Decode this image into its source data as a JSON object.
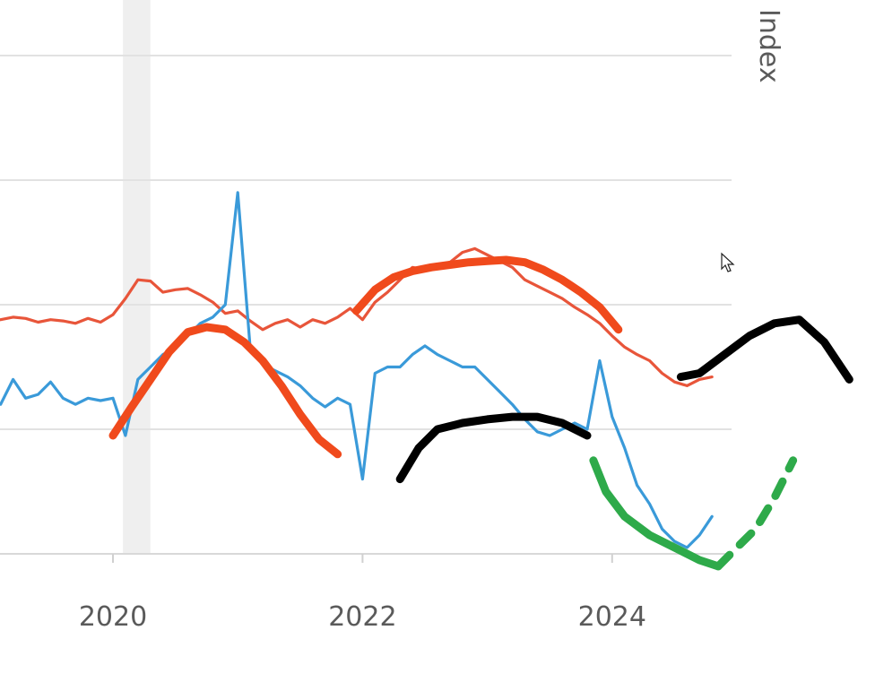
{
  "chart_data": {
    "type": "line",
    "title": "",
    "ylabel": "Index",
    "xlabel": "",
    "grid": true,
    "x_ticks": [
      "2020",
      "2022",
      "2024"
    ],
    "xlim": [
      2019.1,
      2025.0
    ],
    "ylim": [
      0,
      4
    ],
    "shaded_band": {
      "x_start": 2020.08,
      "x_end": 2020.3
    },
    "series": [
      {
        "color": "#e8553a",
        "x": [
          2019.1,
          2019.2,
          2019.3,
          2019.4,
          2019.5,
          2019.6,
          2019.7,
          2019.8,
          2019.9,
          2020.0,
          2020.1,
          2020.2,
          2020.3,
          2020.4,
          2020.5,
          2020.6,
          2020.7,
          2020.8,
          2020.9,
          2021.0,
          2021.1,
          2021.2,
          2021.3,
          2021.4,
          2021.5,
          2021.6,
          2021.7,
          2021.8,
          2021.9,
          2022.0,
          2022.1,
          2022.2,
          2022.3,
          2022.4,
          2022.5,
          2022.6,
          2022.7,
          2022.8,
          2022.9,
          2023.0,
          2023.1,
          2023.2,
          2023.3,
          2023.4,
          2023.5,
          2023.6,
          2023.7,
          2023.8,
          2023.9,
          2024.0,
          2024.1,
          2024.2,
          2024.3,
          2024.4,
          2024.5,
          2024.6,
          2024.7,
          2024.8
        ],
        "y": [
          1.88,
          1.9,
          1.89,
          1.86,
          1.88,
          1.87,
          1.85,
          1.89,
          1.86,
          1.92,
          2.05,
          2.2,
          2.19,
          2.1,
          2.12,
          2.13,
          2.08,
          2.02,
          1.93,
          1.95,
          1.87,
          1.8,
          1.85,
          1.88,
          1.82,
          1.88,
          1.85,
          1.9,
          1.97,
          1.88,
          2.02,
          2.1,
          2.2,
          2.3,
          2.28,
          2.32,
          2.34,
          2.42,
          2.45,
          2.4,
          2.35,
          2.3,
          2.2,
          2.15,
          2.1,
          2.05,
          1.98,
          1.92,
          1.85,
          1.75,
          1.66,
          1.6,
          1.55,
          1.45,
          1.38,
          1.35,
          1.4,
          1.42
        ]
      },
      {
        "color": "#3a9ad9",
        "x": [
          2019.1,
          2019.2,
          2019.3,
          2019.4,
          2019.5,
          2019.6,
          2019.7,
          2019.8,
          2019.9,
          2020.0,
          2020.1,
          2020.2,
          2020.3,
          2020.4,
          2020.5,
          2020.6,
          2020.7,
          2020.8,
          2020.9,
          2021.0,
          2021.1,
          2021.2,
          2021.3,
          2021.4,
          2021.5,
          2021.6,
          2021.7,
          2021.8,
          2021.9,
          2022.0,
          2022.1,
          2022.2,
          2022.3,
          2022.4,
          2022.5,
          2022.6,
          2022.7,
          2022.8,
          2022.9,
          2023.0,
          2023.1,
          2023.2,
          2023.3,
          2023.4,
          2023.5,
          2023.6,
          2023.7,
          2023.8,
          2023.9,
          2024.0,
          2024.1,
          2024.2,
          2024.3,
          2024.4,
          2024.5,
          2024.6,
          2024.7,
          2024.8
        ],
        "y": [
          1.2,
          1.4,
          1.25,
          1.28,
          1.38,
          1.25,
          1.2,
          1.25,
          1.23,
          1.25,
          0.95,
          1.4,
          1.5,
          1.6,
          1.65,
          1.75,
          1.85,
          1.9,
          2.0,
          2.9,
          1.65,
          1.52,
          1.47,
          1.42,
          1.35,
          1.25,
          1.18,
          1.25,
          1.2,
          0.6,
          1.45,
          1.5,
          1.5,
          1.6,
          1.67,
          1.6,
          1.55,
          1.5,
          1.5,
          1.4,
          1.3,
          1.2,
          1.08,
          0.98,
          0.95,
          1.0,
          1.05,
          1.0,
          1.55,
          1.1,
          0.85,
          0.55,
          0.4,
          0.2,
          0.1,
          0.05,
          0.15,
          0.3
        ]
      },
      {
        "color": "#f04a1c",
        "x": [
          2020.0,
          2020.15,
          2020.3,
          2020.45,
          2020.6,
          2020.75,
          2020.9,
          2021.05,
          2021.2,
          2021.35,
          2021.5,
          2021.65,
          2021.8
        ],
        "y": [
          0.95,
          1.18,
          1.4,
          1.62,
          1.78,
          1.82,
          1.8,
          1.7,
          1.55,
          1.35,
          1.12,
          0.92,
          0.8
        ]
      },
      {
        "color": "#f04a1c",
        "x": [
          2021.95,
          2022.1,
          2022.25,
          2022.4,
          2022.55,
          2022.7,
          2022.85,
          2023.0,
          2023.15,
          2023.3,
          2023.45,
          2023.6,
          2023.75,
          2023.9,
          2024.05
        ],
        "y": [
          1.95,
          2.12,
          2.22,
          2.27,
          2.3,
          2.32,
          2.34,
          2.35,
          2.36,
          2.34,
          2.28,
          2.2,
          2.1,
          1.98,
          1.8
        ]
      }
    ],
    "annotations": [
      {
        "color": "#000000",
        "x": [
          2022.3,
          2022.45,
          2022.6,
          2022.8,
          2023.0,
          2023.2,
          2023.4,
          2023.6,
          2023.8
        ],
        "y": [
          0.6,
          0.85,
          1.0,
          1.05,
          1.08,
          1.1,
          1.1,
          1.05,
          0.95
        ]
      },
      {
        "color": "#000000",
        "x": [
          2024.55,
          2024.7,
          2024.9,
          2025.1,
          2025.3,
          2025.5,
          2025.7,
          2025.9
        ],
        "y": [
          1.42,
          1.45,
          1.6,
          1.75,
          1.85,
          1.88,
          1.7,
          1.4
        ]
      },
      {
        "color": "#2eaa4a",
        "x": [
          2023.85,
          2023.95,
          2024.1,
          2024.3,
          2024.5,
          2024.7,
          2024.85
        ],
        "y": [
          0.75,
          0.5,
          0.3,
          0.15,
          0.05,
          -0.05,
          -0.1
        ]
      },
      {
        "color": "#2eaa4a",
        "dashed": true,
        "x": [
          2024.85,
          2025.0,
          2025.15,
          2025.3,
          2025.45
        ],
        "y": [
          -0.1,
          0.05,
          0.2,
          0.45,
          0.75
        ]
      }
    ]
  }
}
